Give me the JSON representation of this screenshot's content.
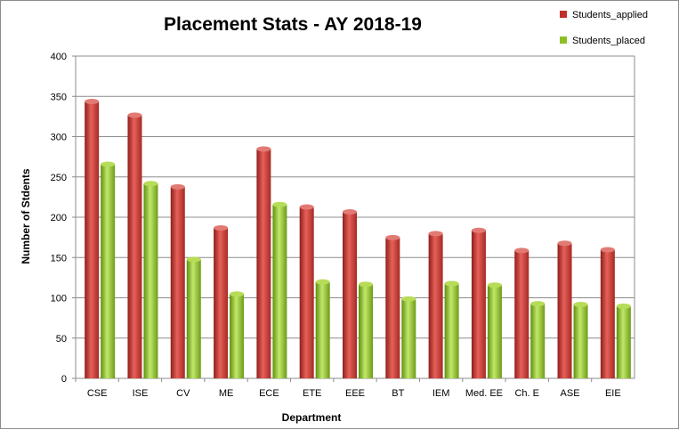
{
  "chart_data": {
    "type": "bar",
    "title": "Placement Stats - AY 2018-19",
    "xlabel": "Department",
    "ylabel": "Number of Stdents",
    "ylim": [
      0,
      400
    ],
    "yticks": [
      "0",
      "50",
      "100",
      "150",
      "200",
      "250",
      "300",
      "350",
      "400"
    ],
    "grid": true,
    "legend_position": "top-right",
    "categories": [
      "CSE",
      "ISE",
      "CV",
      "ME",
      "ECE",
      "ETE",
      "EEE",
      "BT",
      "IEM",
      "Med. EE",
      "Ch. E",
      "ASE",
      "EIE"
    ],
    "series": [
      {
        "name": "Students_applied",
        "color": "#c0302b",
        "values": [
          347,
          330,
          241,
          190,
          288,
          216,
          210,
          178,
          183,
          187,
          162,
          171,
          163
        ]
      },
      {
        "name": "Students_placed",
        "color": "#8cbf26",
        "values": [
          269,
          245,
          151,
          108,
          219,
          123,
          120,
          102,
          121,
          119,
          96,
          95,
          93
        ]
      }
    ]
  }
}
